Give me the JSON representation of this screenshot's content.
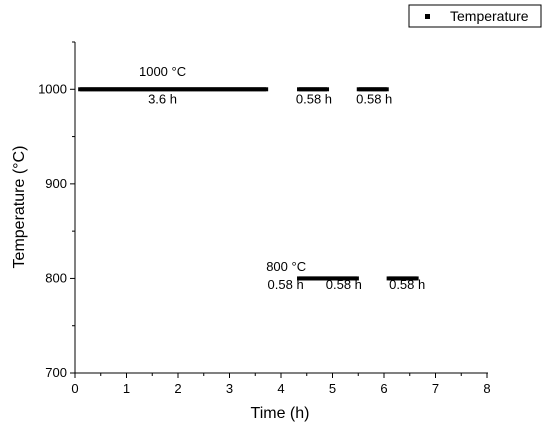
{
  "chart_data": {
    "type": "scatter",
    "title": "",
    "xlabel": "Time (h)",
    "ylabel": "Temperature (°C)",
    "xlim": [
      0,
      8
    ],
    "ylim": [
      700,
      1050
    ],
    "x_ticks": [
      0,
      1,
      2,
      3,
      4,
      5,
      6,
      7,
      8
    ],
    "y_ticks": [
      700,
      800,
      900,
      1000
    ],
    "grid": false,
    "legend_position": "top-right",
    "series": [
      {
        "name": "Temperature",
        "marker": "square",
        "color": "#000000",
        "segments": [
          {
            "x_start": 0.1,
            "x_end": 3.75,
            "y": 1000
          },
          {
            "x_start": 4.35,
            "x_end": 4.93,
            "y": 800
          },
          {
            "x_start": 4.35,
            "x_end": 4.93,
            "y": 1000
          },
          {
            "x_start": 4.93,
            "x_end": 5.51,
            "y": 800
          },
          {
            "x_start": 5.51,
            "x_end": 6.09,
            "y": 1000
          },
          {
            "x_start": 6.09,
            "x_end": 6.67,
            "y": 800
          }
        ]
      }
    ],
    "annotations": [
      {
        "text": "1000 °C",
        "x": 1.7,
        "y": 1014
      },
      {
        "text": "3.6 h",
        "x": 1.7,
        "y": 985
      },
      {
        "text": "0.58 h",
        "x": 4.64,
        "y": 985
      },
      {
        "text": "0.58 h",
        "x": 5.81,
        "y": 985
      },
      {
        "text": "800 °C",
        "x": 4.1,
        "y": 808
      },
      {
        "text": "0.58 h",
        "x": 4.09,
        "y": 789
      },
      {
        "text": "0.58 h",
        "x": 5.22,
        "y": 789
      },
      {
        "text": "0.58 h",
        "x": 6.45,
        "y": 789
      }
    ]
  }
}
